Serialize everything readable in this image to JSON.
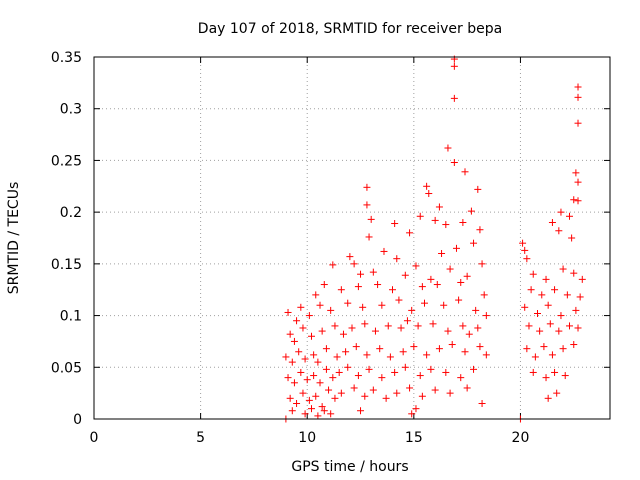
{
  "chart_data": {
    "type": "scatter",
    "title": "Day 107 of 2018, SRMTID for receiver bepa",
    "xlabel": "GPS time / hours",
    "ylabel": "SRMTID / TECUs",
    "xlim": [
      0,
      24.2
    ],
    "ylim": [
      0,
      0.35
    ],
    "x_ticks": [
      0,
      5,
      10,
      15,
      20
    ],
    "y_ticks": [
      0,
      0.05,
      0.1,
      0.15,
      0.2,
      0.25,
      0.3,
      0.35
    ],
    "grid": true,
    "marker": "+",
    "color": "#ff0000",
    "series": [
      {
        "name": "SRMTID",
        "points": [
          [
            9.0,
            0.0
          ],
          [
            20.0,
            0.0
          ],
          [
            16.9,
            0.348
          ],
          [
            16.9,
            0.341
          ],
          [
            16.9,
            0.31
          ],
          [
            16.6,
            0.262
          ],
          [
            16.9,
            0.248
          ],
          [
            17.4,
            0.239
          ],
          [
            22.7,
            0.321
          ],
          [
            22.7,
            0.311
          ],
          [
            22.7,
            0.286
          ],
          [
            22.6,
            0.238
          ],
          [
            22.7,
            0.229
          ],
          [
            22.5,
            0.212
          ],
          [
            22.7,
            0.211
          ],
          [
            12.8,
            0.224
          ],
          [
            15.6,
            0.225
          ],
          [
            15.7,
            0.218
          ],
          [
            18.0,
            0.222
          ],
          [
            12.8,
            0.207
          ],
          [
            13.0,
            0.193
          ],
          [
            14.1,
            0.189
          ],
          [
            15.3,
            0.196
          ],
          [
            16.2,
            0.205
          ],
          [
            17.7,
            0.201
          ],
          [
            21.9,
            0.2
          ],
          [
            22.3,
            0.196
          ],
          [
            12.9,
            0.176
          ],
          [
            14.8,
            0.18
          ],
          [
            16.0,
            0.192
          ],
          [
            16.5,
            0.188
          ],
          [
            17.3,
            0.19
          ],
          [
            18.1,
            0.183
          ],
          [
            21.5,
            0.19
          ],
          [
            21.8,
            0.182
          ],
          [
            22.4,
            0.175
          ],
          [
            20.1,
            0.17
          ],
          [
            20.2,
            0.163
          ],
          [
            20.3,
            0.155
          ],
          [
            12.0,
            0.157
          ],
          [
            12.2,
            0.15
          ],
          [
            11.2,
            0.149
          ],
          [
            13.6,
            0.162
          ],
          [
            14.2,
            0.155
          ],
          [
            15.1,
            0.148
          ],
          [
            16.3,
            0.16
          ],
          [
            17.0,
            0.165
          ],
          [
            17.8,
            0.17
          ],
          [
            12.5,
            0.14
          ],
          [
            13.1,
            0.142
          ],
          [
            14.6,
            0.139
          ],
          [
            15.8,
            0.135
          ],
          [
            16.7,
            0.145
          ],
          [
            17.5,
            0.138
          ],
          [
            18.2,
            0.15
          ],
          [
            20.6,
            0.14
          ],
          [
            21.2,
            0.135
          ],
          [
            22.0,
            0.145
          ],
          [
            22.5,
            0.141
          ],
          [
            22.9,
            0.135
          ],
          [
            10.4,
            0.12
          ],
          [
            10.8,
            0.13
          ],
          [
            11.6,
            0.125
          ],
          [
            12.4,
            0.128
          ],
          [
            13.3,
            0.13
          ],
          [
            14.0,
            0.125
          ],
          [
            15.4,
            0.128
          ],
          [
            16.1,
            0.13
          ],
          [
            17.2,
            0.132
          ],
          [
            18.3,
            0.12
          ],
          [
            20.5,
            0.125
          ],
          [
            21.0,
            0.12
          ],
          [
            21.6,
            0.125
          ],
          [
            22.2,
            0.12
          ],
          [
            22.8,
            0.118
          ],
          [
            9.1,
            0.103
          ],
          [
            9.5,
            0.095
          ],
          [
            9.7,
            0.108
          ],
          [
            10.1,
            0.1
          ],
          [
            10.6,
            0.11
          ],
          [
            11.1,
            0.105
          ],
          [
            11.9,
            0.112
          ],
          [
            12.6,
            0.108
          ],
          [
            13.5,
            0.11
          ],
          [
            14.3,
            0.115
          ],
          [
            14.9,
            0.105
          ],
          [
            15.5,
            0.112
          ],
          [
            16.4,
            0.11
          ],
          [
            17.1,
            0.115
          ],
          [
            17.9,
            0.105
          ],
          [
            18.4,
            0.1
          ],
          [
            20.2,
            0.108
          ],
          [
            20.8,
            0.102
          ],
          [
            21.3,
            0.11
          ],
          [
            21.9,
            0.1
          ],
          [
            22.6,
            0.105
          ],
          [
            9.2,
            0.082
          ],
          [
            9.4,
            0.075
          ],
          [
            9.8,
            0.088
          ],
          [
            10.2,
            0.08
          ],
          [
            10.7,
            0.085
          ],
          [
            11.3,
            0.09
          ],
          [
            11.7,
            0.082
          ],
          [
            12.1,
            0.088
          ],
          [
            12.7,
            0.092
          ],
          [
            13.2,
            0.085
          ],
          [
            13.8,
            0.09
          ],
          [
            14.4,
            0.088
          ],
          [
            14.7,
            0.095
          ],
          [
            15.2,
            0.09
          ],
          [
            15.9,
            0.092
          ],
          [
            16.6,
            0.085
          ],
          [
            17.3,
            0.09
          ],
          [
            17.6,
            0.082
          ],
          [
            18.0,
            0.088
          ],
          [
            20.4,
            0.09
          ],
          [
            20.9,
            0.085
          ],
          [
            21.4,
            0.092
          ],
          [
            21.8,
            0.085
          ],
          [
            22.3,
            0.09
          ],
          [
            22.7,
            0.088
          ],
          [
            9.0,
            0.06
          ],
          [
            9.3,
            0.055
          ],
          [
            9.6,
            0.065
          ],
          [
            9.9,
            0.058
          ],
          [
            10.3,
            0.062
          ],
          [
            10.5,
            0.055
          ],
          [
            10.9,
            0.068
          ],
          [
            11.4,
            0.06
          ],
          [
            11.8,
            0.065
          ],
          [
            12.3,
            0.07
          ],
          [
            12.8,
            0.062
          ],
          [
            13.4,
            0.068
          ],
          [
            13.9,
            0.06
          ],
          [
            14.5,
            0.065
          ],
          [
            15.0,
            0.07
          ],
          [
            15.6,
            0.062
          ],
          [
            16.2,
            0.068
          ],
          [
            16.8,
            0.072
          ],
          [
            17.4,
            0.065
          ],
          [
            18.1,
            0.07
          ],
          [
            18.4,
            0.062
          ],
          [
            20.3,
            0.068
          ],
          [
            20.7,
            0.06
          ],
          [
            21.1,
            0.07
          ],
          [
            21.5,
            0.062
          ],
          [
            22.0,
            0.068
          ],
          [
            22.5,
            0.072
          ],
          [
            9.1,
            0.04
          ],
          [
            9.4,
            0.035
          ],
          [
            9.7,
            0.045
          ],
          [
            10.0,
            0.038
          ],
          [
            10.3,
            0.042
          ],
          [
            10.6,
            0.035
          ],
          [
            10.9,
            0.048
          ],
          [
            11.2,
            0.04
          ],
          [
            11.5,
            0.045
          ],
          [
            11.9,
            0.05
          ],
          [
            12.4,
            0.042
          ],
          [
            12.9,
            0.048
          ],
          [
            13.5,
            0.04
          ],
          [
            14.1,
            0.045
          ],
          [
            14.6,
            0.05
          ],
          [
            15.3,
            0.042
          ],
          [
            15.8,
            0.048
          ],
          [
            16.5,
            0.045
          ],
          [
            17.2,
            0.04
          ],
          [
            17.8,
            0.048
          ],
          [
            20.6,
            0.045
          ],
          [
            21.2,
            0.04
          ],
          [
            21.6,
            0.045
          ],
          [
            22.1,
            0.042
          ],
          [
            9.2,
            0.02
          ],
          [
            9.5,
            0.015
          ],
          [
            9.8,
            0.025
          ],
          [
            10.1,
            0.018
          ],
          [
            10.4,
            0.022
          ],
          [
            10.7,
            0.012
          ],
          [
            11.0,
            0.028
          ],
          [
            11.3,
            0.02
          ],
          [
            11.6,
            0.025
          ],
          [
            12.2,
            0.03
          ],
          [
            12.7,
            0.022
          ],
          [
            13.1,
            0.028
          ],
          [
            13.7,
            0.02
          ],
          [
            14.2,
            0.025
          ],
          [
            14.8,
            0.03
          ],
          [
            15.4,
            0.022
          ],
          [
            16.0,
            0.028
          ],
          [
            16.7,
            0.025
          ],
          [
            17.5,
            0.03
          ],
          [
            18.2,
            0.015
          ],
          [
            21.3,
            0.02
          ],
          [
            21.7,
            0.025
          ],
          [
            9.3,
            0.008
          ],
          [
            9.9,
            0.005
          ],
          [
            10.2,
            0.01
          ],
          [
            10.5,
            0.003
          ],
          [
            10.8,
            0.008
          ],
          [
            11.1,
            0.005
          ],
          [
            12.5,
            0.008
          ],
          [
            14.9,
            0.005
          ],
          [
            15.1,
            0.01
          ]
        ]
      }
    ]
  }
}
